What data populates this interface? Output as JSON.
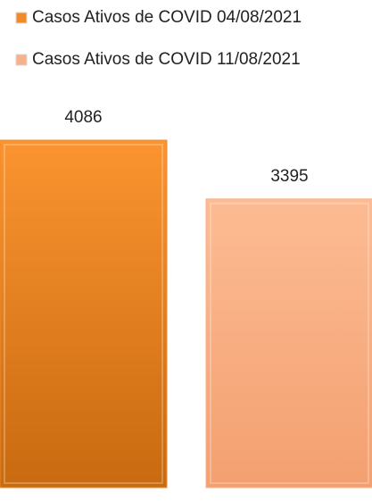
{
  "chart_data": {
    "type": "bar",
    "categories": [
      null
    ],
    "series": [
      {
        "name": "Casos Ativos de COVID 04/08/2021",
        "color": "#f28a26",
        "values": [
          4086
        ]
      },
      {
        "name": "Casos Ativos de COVID 11/08/2021",
        "color": "#f9b189",
        "values": [
          3395
        ]
      }
    ]
  }
}
